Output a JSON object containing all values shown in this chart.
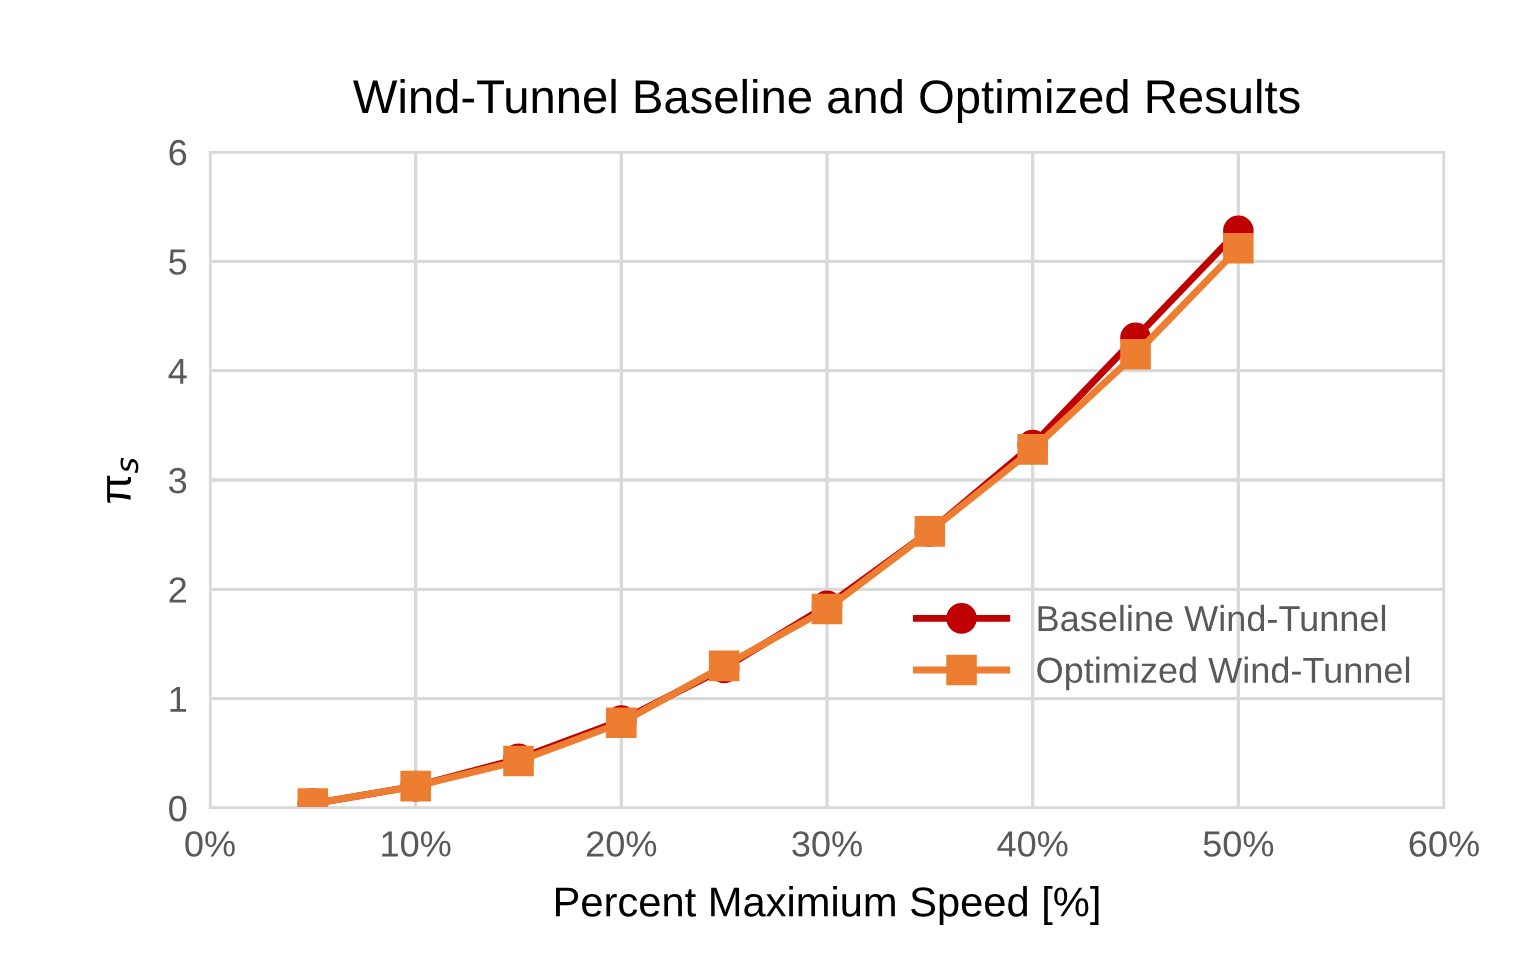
{
  "chart_data": {
    "type": "line",
    "title": "Wind-Tunnel Baseline and Optimized Results",
    "xlabel": "Percent Maximium Speed [%]",
    "ylabel": "π$_{s}$",
    "x": [
      5,
      10,
      15,
      20,
      25,
      30,
      35,
      40,
      45,
      50
    ],
    "series": [
      {
        "name": "Baseline Wind-Tunnel",
        "color": "#c00000",
        "marker": "circle",
        "values": [
          0.04,
          0.2,
          0.45,
          0.8,
          1.28,
          1.85,
          2.53,
          3.32,
          4.3,
          5.28
        ]
      },
      {
        "name": "Optimized Wind-Tunnel",
        "color": "#ed7d31",
        "marker": "square",
        "values": [
          0.04,
          0.2,
          0.43,
          0.78,
          1.3,
          1.82,
          2.53,
          3.28,
          4.15,
          5.12
        ]
      }
    ],
    "xlim": [
      0,
      60
    ],
    "xticks": [
      {
        "value": 0,
        "label": "0%"
      },
      {
        "value": 10,
        "label": "10%"
      },
      {
        "value": 20,
        "label": "20%"
      },
      {
        "value": 30,
        "label": "30%"
      },
      {
        "value": 40,
        "label": "40%"
      },
      {
        "value": 50,
        "label": "50%"
      },
      {
        "value": 60,
        "label": "60%"
      }
    ],
    "ylim": [
      0,
      6
    ],
    "yticks": [
      0,
      1,
      2,
      3,
      4,
      5,
      6
    ],
    "grid": true,
    "legend": "bottom right",
    "line_style": "solid"
  }
}
